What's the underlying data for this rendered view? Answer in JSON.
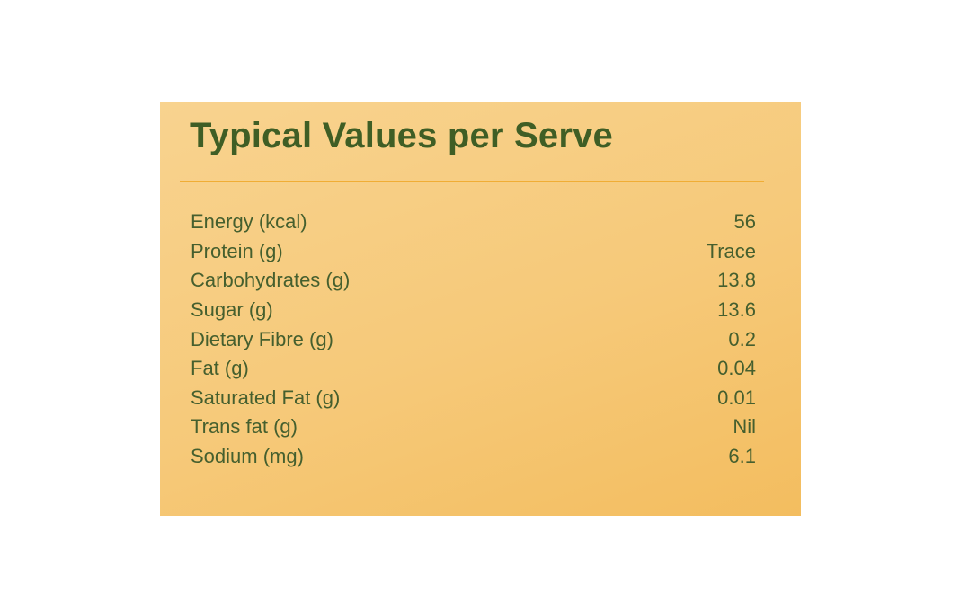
{
  "panel": {
    "title": "Typical Values per Serve",
    "rows": [
      {
        "label": "Energy (kcal)",
        "value": "56"
      },
      {
        "label": "Protein (g)",
        "value": "Trace"
      },
      {
        "label": "Carbohydrates (g)",
        "value": "13.8"
      },
      {
        "label": "Sugar (g)",
        "value": "13.6"
      },
      {
        "label": "Dietary Fibre (g)",
        "value": "0.2"
      },
      {
        "label": "Fat (g)",
        "value": "0.04"
      },
      {
        "label": "Saturated Fat (g)",
        "value": "0.01"
      },
      {
        "label": "Trans fat (g)",
        "value": "Nil"
      },
      {
        "label": "Sodium (mg)",
        "value": "6.1"
      }
    ]
  },
  "colors": {
    "background": "#ffffff",
    "panel": "#f6c979",
    "title_text": "#3f5e25",
    "body_text": "#455f2e",
    "rule": "#f0ad35"
  }
}
